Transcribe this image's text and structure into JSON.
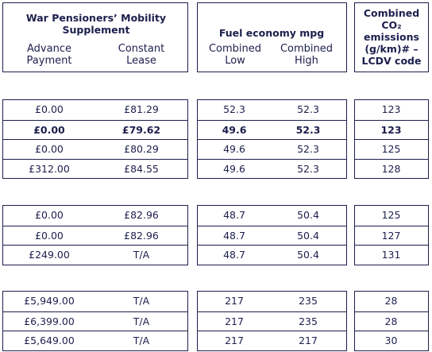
{
  "header": {
    "groups": [
      {
        "title": "War Pensioners’ Mobility Supplement",
        "columns": [
          "Advance Payment",
          "Constant Lease"
        ]
      },
      {
        "title": "Fuel economy mpg",
        "columns": [
          "Combined Low",
          "Combined High"
        ]
      },
      {
        "title": "Combined CO₂ emissions (g/km)# – LCDV code",
        "columns": []
      }
    ]
  },
  "table": {
    "groups": [
      {
        "rows": [
          {
            "cells": [
              "£0.00",
              "£81.29",
              "52.3",
              "52.3",
              "123"
            ]
          },
          {
            "cells": [
              "£0.00",
              "£79.62",
              "49.6",
              "52.3",
              "123"
            ],
            "bold": true
          },
          {
            "cells": [
              "£0.00",
              "£80.29",
              "49.6",
              "52.3",
              "125"
            ]
          },
          {
            "cells": [
              "£312.00",
              "£84.55",
              "49.6",
              "52.3",
              "128"
            ]
          }
        ]
      },
      {
        "rows": [
          {
            "cells": [
              "£0.00",
              "£82.96",
              "48.7",
              "50.4",
              "125"
            ]
          },
          {
            "cells": [
              "£0.00",
              "£82.96",
              "48.7",
              "50.4",
              "127"
            ]
          },
          {
            "cells": [
              "£249.00",
              "T/A",
              "48.7",
              "50.4",
              "131"
            ]
          }
        ]
      },
      {
        "rows": [
          {
            "cells": [
              "£5,949.00",
              "T/A",
              "217",
              "235",
              "28"
            ]
          },
          {
            "cells": [
              "£6,399.00",
              "T/A",
              "217",
              "235",
              "28"
            ]
          },
          {
            "cells": [
              "£5,649.00",
              "T/A",
              "217",
              "217",
              "30"
            ]
          }
        ]
      }
    ]
  }
}
